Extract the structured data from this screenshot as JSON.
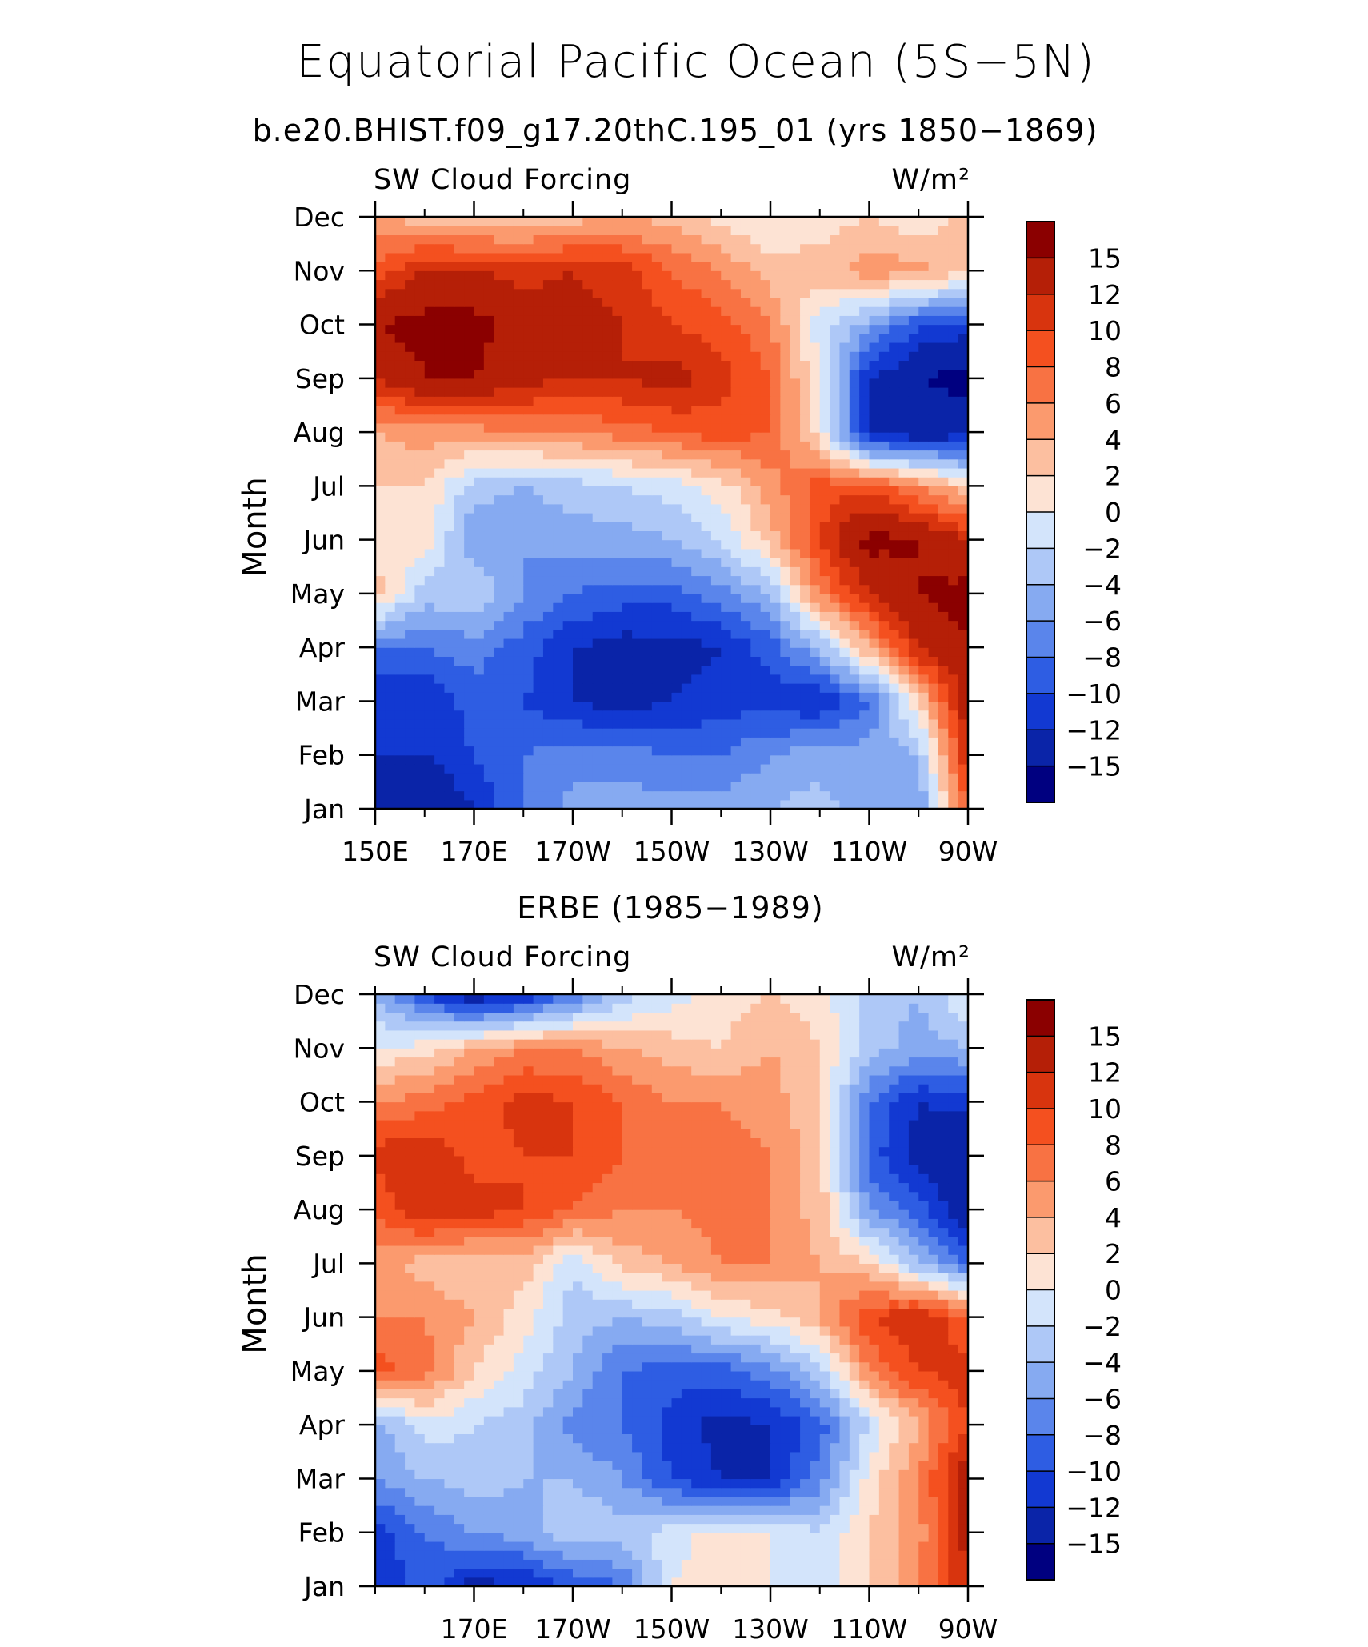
{
  "title": "Equatorial Pacific Ocean (5S−5N)",
  "units": "W/m²",
  "ylabel": "Month",
  "months": [
    "Jan",
    "Feb",
    "Mar",
    "Apr",
    "May",
    "Jun",
    "Jul",
    "Aug",
    "Sep",
    "Oct",
    "Nov",
    "Dec"
  ],
  "colorbar": {
    "labels": [
      "15",
      "12",
      "10",
      "8",
      "6",
      "4",
      "2",
      "0",
      "−2",
      "−4",
      "−6",
      "−8",
      "−10",
      "−12",
      "−15"
    ],
    "colors": [
      "#8b0000",
      "#b51f07",
      "#d8340e",
      "#f4501f",
      "#f87243",
      "#fb9a6e",
      "#fcbfa0",
      "#fde3d4",
      "#d3e4fb",
      "#aec8f7",
      "#86aaf1",
      "#5a85eb",
      "#2e5de3",
      "#1239d2",
      "#0a24a8",
      "#000080"
    ]
  },
  "chart_data": [
    {
      "type": "heatmap",
      "subtitle": "b.e20.BHIST.f09_g17.20thC.195_01 (yrs 1850−1869)",
      "label_left": "SW Cloud Forcing",
      "label_right": "W/m²",
      "ylabel": "Month",
      "x_ticks": [
        "150E",
        "170E",
        "170W",
        "150W",
        "130W",
        "110W",
        "90W"
      ],
      "x_range": [
        "150E",
        "90W"
      ],
      "y": [
        "Jan",
        "Feb",
        "Mar",
        "Apr",
        "May",
        "Jun",
        "Jul",
        "Aug",
        "Sep",
        "Oct",
        "Nov",
        "Dec"
      ],
      "lon_columns": [
        "150E",
        "160E",
        "170E",
        "180",
        "170W",
        "160W",
        "150W",
        "140W",
        "130W",
        "120W",
        "110W",
        "100W",
        "90W"
      ],
      "values": [
        [
          -14,
          -15,
          -12,
          -8,
          -5,
          -5,
          -5,
          -5,
          -4,
          -3,
          -6,
          -6,
          8
        ],
        [
          -12,
          -12,
          -10,
          -8,
          -7,
          -7,
          -8,
          -8,
          -6,
          -5,
          -5,
          -4,
          12
        ],
        [
          -12,
          -12,
          -9,
          -10,
          -12,
          -13,
          -12,
          -11,
          -11,
          -12,
          -8,
          2,
          14
        ],
        [
          -8,
          -8,
          -7,
          -9,
          -12,
          -13,
          -13,
          -12,
          -9,
          -4,
          4,
          12,
          15
        ],
        [
          3,
          -3,
          -2,
          -6,
          -8,
          -9,
          -9,
          -7,
          -4,
          6,
          12,
          15,
          16
        ],
        [
          1,
          1,
          -6,
          -6,
          -5,
          -5,
          -4,
          -2,
          3,
          10,
          16,
          15,
          12
        ],
        [
          2,
          2,
          -3,
          -4,
          -3,
          -2,
          -1,
          1,
          5,
          9,
          9,
          6,
          2
        ],
        [
          4,
          5,
          5,
          6,
          6,
          7,
          8,
          9,
          8,
          1,
          -13,
          -14,
          -13
        ],
        [
          12,
          15,
          15,
          13,
          12,
          12,
          13,
          11,
          8,
          0,
          -12,
          -15,
          -16
        ],
        [
          15,
          16,
          16,
          14,
          13,
          12,
          10,
          9,
          6,
          -1,
          -5,
          -10,
          -11
        ],
        [
          9,
          12,
          12,
          11,
          12,
          11,
          8,
          6,
          3,
          3,
          5,
          5,
          2
        ],
        [
          4,
          3,
          2,
          2,
          3,
          4,
          3,
          1,
          0,
          1,
          2,
          0,
          3
        ]
      ]
    },
    {
      "type": "heatmap",
      "subtitle": "ERBE (1985−1989)",
      "label_left": "SW Cloud Forcing",
      "label_right": "W/m²",
      "ylabel": "Month",
      "x_ticks": [
        "170E",
        "170W",
        "150W",
        "130W",
        "110W",
        "90W"
      ],
      "x_range": [
        "150E",
        "90W"
      ],
      "y": [
        "Jan",
        "Feb",
        "Mar",
        "Apr",
        "May",
        "Jun",
        "Jul",
        "Aug",
        "Sep",
        "Oct",
        "Nov",
        "Dec"
      ],
      "lon_columns": [
        "150E",
        "160E",
        "170E",
        "180",
        "170W",
        "160W",
        "150W",
        "140W",
        "130W",
        "120W",
        "110W",
        "100W",
        "90W"
      ],
      "values": [
        [
          -12,
          -9,
          -13,
          -12,
          -10,
          -8,
          0,
          1,
          0,
          -1,
          2,
          6,
          12
        ],
        [
          -11,
          -8,
          -6,
          -5,
          -2,
          -3,
          -1,
          1,
          0,
          -2,
          2,
          5,
          13
        ],
        [
          -6,
          -4,
          -3,
          -4,
          -4,
          -6,
          -10,
          -12,
          -12,
          -7,
          1,
          6,
          14
        ],
        [
          -5,
          -1,
          -2,
          -3,
          -7,
          -8,
          -11,
          -13,
          -12,
          -9,
          -2,
          4,
          10
        ],
        [
          9,
          7,
          2,
          -1,
          -4,
          -8,
          -9,
          -9,
          -7,
          -3,
          6,
          10,
          11
        ],
        [
          6,
          6,
          4,
          1,
          -3,
          -4,
          -3,
          0,
          1,
          4,
          10,
          12,
          8
        ],
        [
          5,
          3,
          2,
          3,
          -2,
          3,
          4,
          6,
          6,
          4,
          2,
          -4,
          -8
        ],
        [
          8,
          12,
          11,
          10,
          8,
          6,
          6,
          7,
          6,
          3,
          -6,
          -9,
          -14
        ],
        [
          11,
          12,
          9,
          10,
          10,
          8,
          6,
          7,
          6,
          3,
          -9,
          -13,
          -15
        ],
        [
          6,
          7,
          9,
          11,
          10,
          8,
          6,
          6,
          5,
          2,
          -8,
          -12,
          -11
        ],
        [
          0,
          1,
          4,
          6,
          6,
          4,
          3,
          2,
          4,
          2,
          -3,
          -5,
          -4
        ],
        [
          -4,
          -10,
          -14,
          -12,
          -8,
          -3,
          -1,
          1,
          2,
          1,
          -3,
          -4,
          0
        ]
      ]
    }
  ]
}
